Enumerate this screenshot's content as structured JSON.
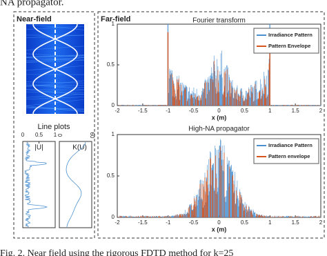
{
  "header_fragment": "NA propagator.",
  "near_field": {
    "title": "Near-field",
    "line_plots_title": "Line plots",
    "plots": [
      {
        "label": "|U|",
        "ticks": [
          0,
          0.5,
          1
        ]
      },
      {
        "label": "K(U)",
        "ticks": [
          0,
          60
        ]
      }
    ]
  },
  "far_field": {
    "title": "Far-field",
    "plots": [
      {
        "title": "Fourier transform",
        "xlabel": "x (m)",
        "xticks": [
          -2,
          -1.5,
          -1,
          -0.5,
          0,
          0.5,
          1,
          1.5,
          2
        ],
        "yticks": [
          0,
          0.5,
          1
        ],
        "legend": [
          "Irradiance Pattern",
          "Pattern Envelope"
        ]
      },
      {
        "title": "High-NA propagator",
        "xlabel": "x (m)",
        "xticks": [
          -2,
          -1.5,
          -1,
          -0.5,
          0,
          0.5,
          1,
          1.5,
          2
        ],
        "yticks": [
          0,
          0.5,
          1
        ],
        "legend": [
          "Irradiance Pattern",
          "Pattern envelope"
        ]
      }
    ]
  },
  "caption": "Fig. 2. Near field using the rigorous FDTD method for k=25"
}
